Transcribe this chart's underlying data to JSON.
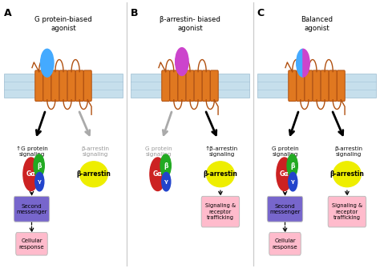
{
  "panels": [
    "A",
    "B",
    "C"
  ],
  "panel_titles": [
    "G protein-biased\nagonist",
    "β-arrestin- biased\nagonist",
    "Balanced\nagonist"
  ],
  "membrane_color": "#b8d8e8",
  "membrane_border_color": "#8ab0c8",
  "receptor_color": "#e07820",
  "receptor_outline": "#b05010",
  "agonist_A_color": "#44aaff",
  "agonist_B_color": "#cc44cc",
  "Ga_color": "#cc2222",
  "beta_color": "#22aa22",
  "gamma_color": "#2244cc",
  "barrestin_color": "#eeee00",
  "barrestin_outline": "#cccc00",
  "second_messenger_color": "#7766cc",
  "cellular_response_color": "#ffbbcc",
  "signaling_trafficking_color": "#ffbbcc",
  "arrow_black": "#111111",
  "arrow_gray": "#aaaaaa",
  "text_black": "#111111",
  "text_gray": "#999999",
  "background": "#ffffff",
  "sep_color": "#cccccc"
}
